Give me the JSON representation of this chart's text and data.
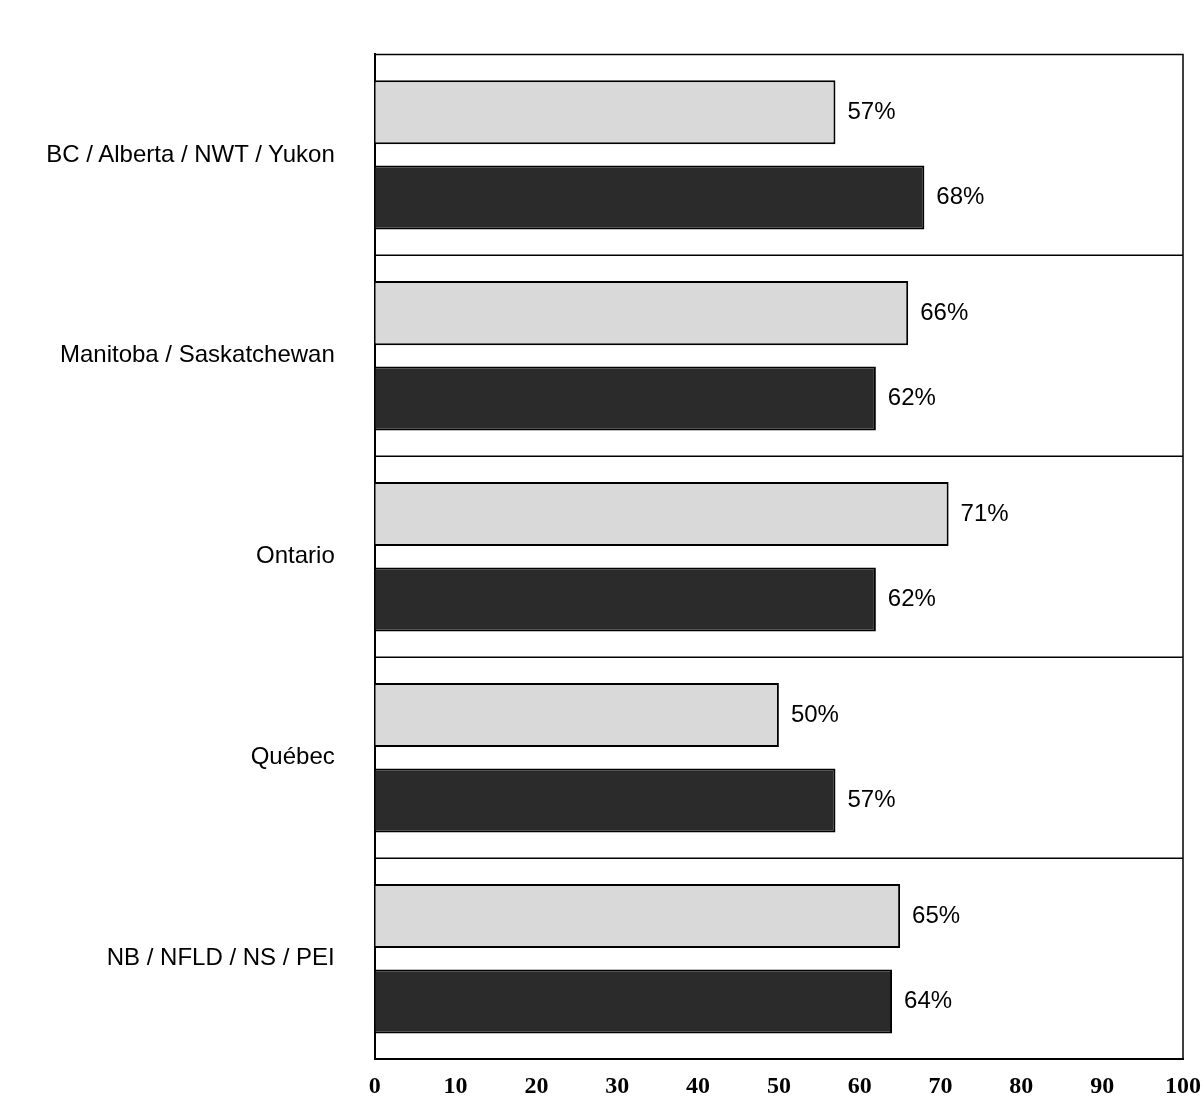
{
  "chart_data": {
    "type": "bar",
    "orientation": "horizontal",
    "categories": [
      "BC / Alberta / NWT / Yukon",
      "Manitoba / Saskatchewan",
      "Ontario",
      "Québec",
      "NB / NFLD / NS / PEI"
    ],
    "series": [
      {
        "color": "#d9d9d9",
        "values": [
          57,
          66,
          71,
          50,
          65
        ],
        "value_labels": [
          "57%",
          "66%",
          "71%",
          "50%",
          "65%"
        ]
      },
      {
        "color": "#2b2b2b",
        "values": [
          68,
          62,
          62,
          57,
          64
        ],
        "value_labels": [
          "68%",
          "62%",
          "62%",
          "57%",
          "64%"
        ]
      }
    ],
    "xlim": [
      0,
      100
    ],
    "xticks": [
      0,
      10,
      20,
      30,
      40,
      50,
      60,
      70,
      80,
      90,
      100
    ],
    "grid": false,
    "legend": false
  }
}
